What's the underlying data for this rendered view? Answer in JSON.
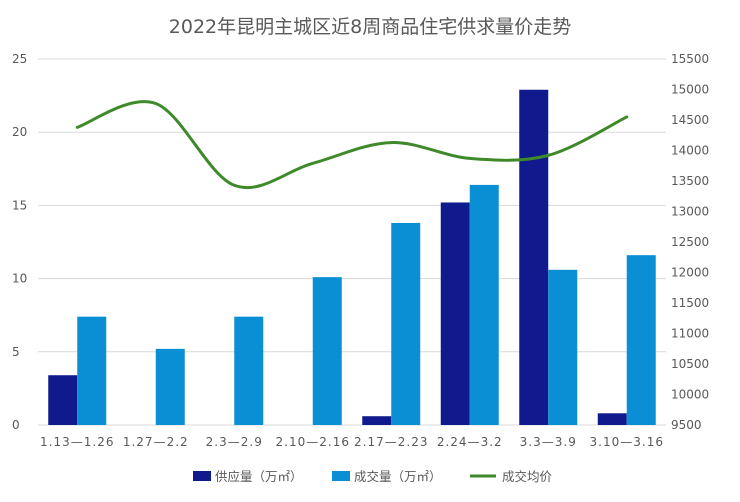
{
  "chart_data": {
    "type": "bar",
    "title": "2022年昆明主城区近8周商品住宅供求量价走势",
    "categories": [
      "1.13—1.26",
      "1.27—2.2",
      "2.3—2.9",
      "2.10—2.16",
      "2.17—2.23",
      "2.24—3.2",
      "3.3—3.9",
      "3.10—3.16"
    ],
    "y_left": {
      "min": 0,
      "max": 25,
      "ticks": [
        "0",
        "5",
        "10",
        "15",
        "20",
        "25"
      ]
    },
    "y_right": {
      "min": 9500,
      "max": 15500,
      "ticks": [
        "9500",
        "10000",
        "10500",
        "11000",
        "11500",
        "12000",
        "12500",
        "13000",
        "13500",
        "14000",
        "14500",
        "15000",
        "15500"
      ]
    },
    "series": [
      {
        "name": "供应量（万㎡）",
        "type": "bar",
        "axis": "left",
        "color": "#101a8c",
        "values": [
          3.4,
          0,
          0,
          0,
          0.6,
          15.2,
          22.9,
          0.8
        ]
      },
      {
        "name": "成交量（万㎡）",
        "type": "bar",
        "axis": "left",
        "color": "#0b8fd4",
        "values": [
          7.4,
          5.2,
          7.4,
          10.1,
          13.8,
          16.4,
          10.6,
          11.6
        ]
      },
      {
        "name": "成交均价",
        "type": "line",
        "axis": "right",
        "color": "#3e8a2a",
        "values": [
          14380,
          14770,
          13430,
          13790,
          14130,
          13870,
          13920,
          14550
        ]
      }
    ],
    "grid": true,
    "legend": "bottom"
  }
}
